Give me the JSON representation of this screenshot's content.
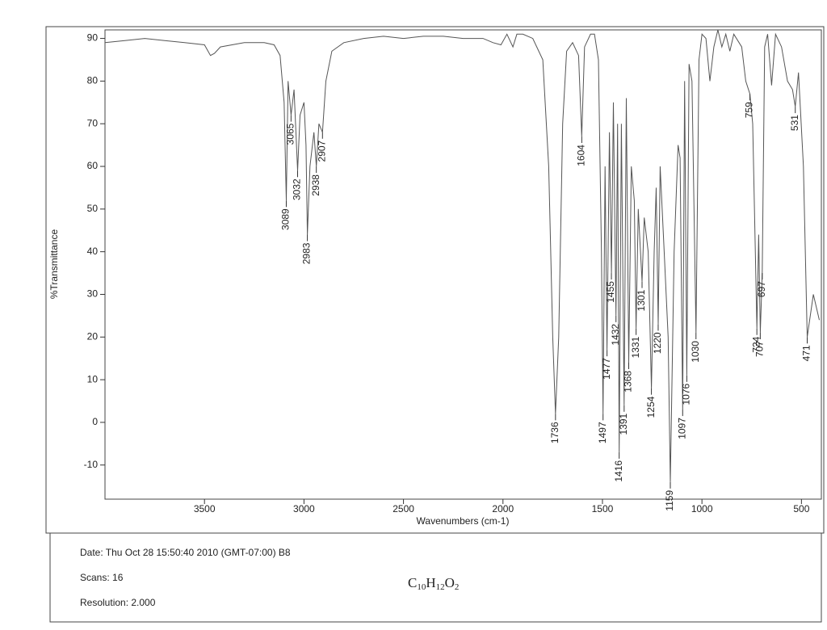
{
  "chart_data": {
    "type": "line",
    "xlabel": "Wavenumbers (cm-1)",
    "ylabel": "%Transmittance",
    "xlim": [
      4000,
      400
    ],
    "ylim": [
      -18,
      92
    ],
    "xticks": [
      3500,
      3000,
      2500,
      2000,
      1500,
      1000,
      500
    ],
    "yticks": [
      -10,
      0,
      10,
      20,
      30,
      40,
      50,
      60,
      70,
      80,
      90
    ],
    "color": "#555555",
    "x": [
      4000,
      3900,
      3800,
      3700,
      3600,
      3500,
      3470,
      3450,
      3420,
      3300,
      3200,
      3150,
      3120,
      3100,
      3089,
      3080,
      3065,
      3050,
      3032,
      3020,
      3000,
      2990,
      2983,
      2970,
      2950,
      2938,
      2925,
      2907,
      2890,
      2860,
      2800,
      2700,
      2600,
      2500,
      2400,
      2300,
      2200,
      2100,
      2050,
      2010,
      1980,
      1950,
      1930,
      1900,
      1850,
      1800,
      1770,
      1750,
      1736,
      1720,
      1700,
      1680,
      1650,
      1620,
      1604,
      1590,
      1560,
      1540,
      1520,
      1505,
      1497,
      1487,
      1477,
      1465,
      1455,
      1445,
      1432,
      1424,
      1416,
      1405,
      1391,
      1380,
      1368,
      1355,
      1340,
      1331,
      1320,
      1301,
      1290,
      1270,
      1254,
      1240,
      1230,
      1220,
      1210,
      1190,
      1170,
      1159,
      1140,
      1120,
      1110,
      1097,
      1087,
      1076,
      1065,
      1050,
      1030,
      1015,
      1000,
      980,
      960,
      940,
      920,
      900,
      880,
      860,
      840,
      800,
      780,
      759,
      745,
      724,
      715,
      707,
      697,
      685,
      670,
      650,
      630,
      600,
      570,
      545,
      531,
      515,
      490,
      471,
      440,
      410
    ],
    "values": [
      89,
      89.5,
      90,
      89.5,
      89,
      88.5,
      86,
      86.5,
      88,
      89,
      89,
      88.5,
      86,
      75,
      52,
      80,
      72,
      78,
      59,
      72,
      75,
      65,
      44,
      60,
      68,
      60,
      70,
      68,
      80,
      87,
      89,
      90,
      90.5,
      90,
      90.5,
      90.5,
      90,
      90,
      89,
      88.5,
      91,
      88,
      91,
      91,
      90,
      85,
      60,
      20,
      2,
      20,
      70,
      87,
      89,
      86,
      67,
      88,
      91,
      91,
      85,
      40,
      2,
      60,
      17,
      68,
      35,
      75,
      25,
      70,
      -7,
      70,
      4,
      76,
      14,
      60,
      52,
      22,
      50,
      33,
      48,
      40,
      8,
      40,
      55,
      23,
      60,
      40,
      20,
      -14,
      40,
      65,
      62,
      3,
      80,
      11,
      84,
      80,
      21,
      85,
      91,
      90,
      80,
      88,
      92,
      88,
      91,
      87,
      91,
      88,
      80,
      77,
      70,
      22,
      44,
      21,
      35,
      88,
      91,
      79,
      91,
      88,
      80,
      78,
      74,
      82,
      60,
      20,
      30,
      24
    ],
    "peaks": [
      {
        "x": 3089,
        "y": 52,
        "label": "3089"
      },
      {
        "x": 3065,
        "y": 72,
        "label": "3065"
      },
      {
        "x": 3032,
        "y": 59,
        "label": "3032"
      },
      {
        "x": 2983,
        "y": 44,
        "label": "2983"
      },
      {
        "x": 2938,
        "y": 60,
        "label": "2938"
      },
      {
        "x": 2907,
        "y": 68,
        "label": "2907"
      },
      {
        "x": 1736,
        "y": 2,
        "label": "1736"
      },
      {
        "x": 1604,
        "y": 67,
        "label": "1604"
      },
      {
        "x": 1497,
        "y": 2,
        "label": "1497"
      },
      {
        "x": 1477,
        "y": 17,
        "label": "1477"
      },
      {
        "x": 1455,
        "y": 35,
        "label": "1455"
      },
      {
        "x": 1432,
        "y": 25,
        "label": "1432"
      },
      {
        "x": 1416,
        "y": -7,
        "label": "1416"
      },
      {
        "x": 1391,
        "y": 4,
        "label": "1391"
      },
      {
        "x": 1368,
        "y": 14,
        "label": "1368"
      },
      {
        "x": 1331,
        "y": 22,
        "label": "1331"
      },
      {
        "x": 1301,
        "y": 33,
        "label": "1301"
      },
      {
        "x": 1254,
        "y": 8,
        "label": "1254"
      },
      {
        "x": 1220,
        "y": 23,
        "label": "1220"
      },
      {
        "x": 1159,
        "y": -14,
        "label": "1159"
      },
      {
        "x": 1097,
        "y": 3,
        "label": "1097"
      },
      {
        "x": 1076,
        "y": 11,
        "label": "1076"
      },
      {
        "x": 1030,
        "y": 21,
        "label": "1030"
      },
      {
        "x": 759,
        "y": 77,
        "label": "759"
      },
      {
        "x": 724,
        "y": 22,
        "label": "724"
      },
      {
        "x": 707,
        "y": 21,
        "label": "707"
      },
      {
        "x": 697,
        "y": 35,
        "label": "697"
      },
      {
        "x": 531,
        "y": 74,
        "label": "531"
      },
      {
        "x": 471,
        "y": 20,
        "label": "471"
      }
    ]
  },
  "info": {
    "date": "Date: Thu Oct 28 15:50:40 2010 (GMT-07:00)  B8",
    "scans": "Scans: 16",
    "resolution": "Resolution:  2.000",
    "formula": [
      "C",
      "10",
      "H",
      "12",
      "O",
      "2"
    ]
  }
}
